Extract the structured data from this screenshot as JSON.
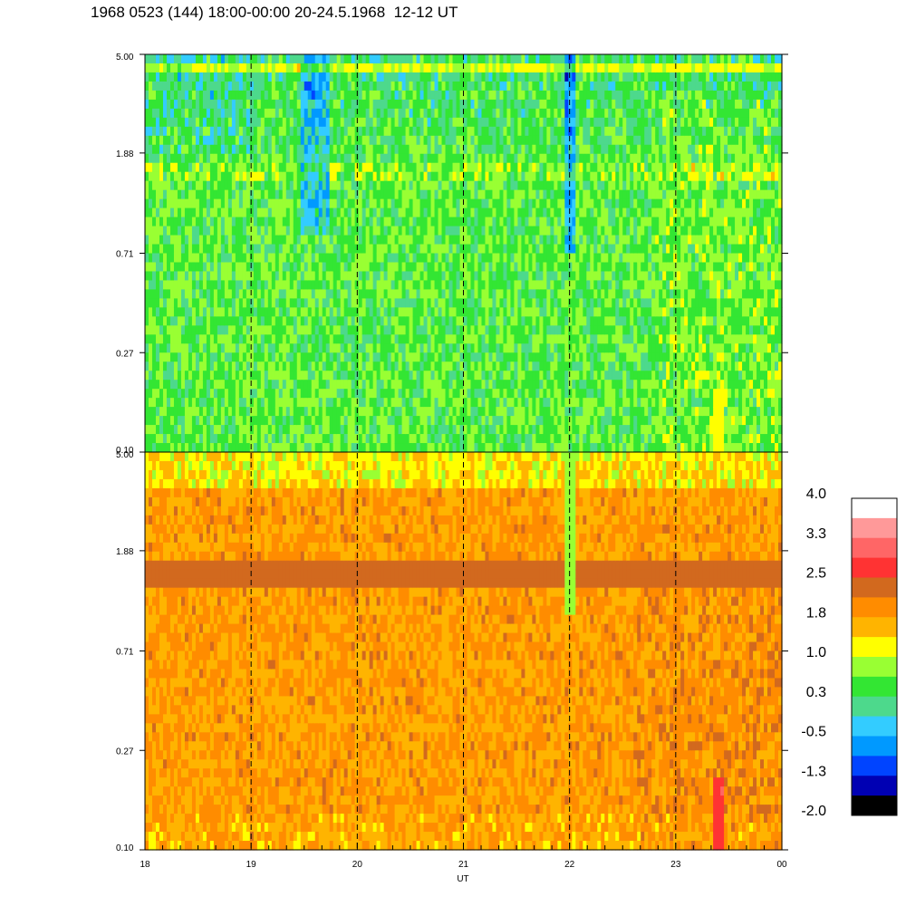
{
  "title": "1968 0523 (144) 18:00-00:00 20-24.5.1968  12-12 UT",
  "chart_data": [
    {
      "type": "heatmap",
      "panel": "upper",
      "x_range": [
        18,
        24
      ],
      "y_ticks": [
        "5.00",
        "1.88",
        "0.71",
        "0.27",
        "0.10"
      ],
      "y_scale": "log",
      "dominant_level_range": [
        0.0,
        1.4
      ],
      "notable_features": [
        "low values (blue) near 1.88–5.00 around 19.6 and 22.0 UT",
        "yellow band just below 5.00",
        "yellow streak near 23.4 UT at 0.10"
      ]
    },
    {
      "type": "heatmap",
      "panel": "lower",
      "x_range": [
        18,
        24
      ],
      "x_tick_labels": [
        "18",
        "19",
        "20",
        "21",
        "22",
        "23",
        "00"
      ],
      "xlabel": "UT",
      "y_ticks": [
        "5.00",
        "1.88",
        "0.71",
        "0.27",
        "0.10"
      ],
      "y_scale": "log",
      "dominant_level_range": [
        1.0,
        2.5
      ],
      "notable_features": [
        "darker orange band near 1.88",
        "green streak near 22.0 UT at 1.88",
        "red streak near 23.4 UT at 0.10"
      ]
    }
  ],
  "dashed_lines_ut": [
    19,
    20,
    21,
    22,
    23
  ],
  "colorbar": {
    "labels": [
      "4.0",
      "3.3",
      "2.5",
      "1.8",
      "1.0",
      "0.3",
      "-0.5",
      "-1.3",
      "-2.0"
    ],
    "colors": [
      "#ffffff",
      "#ff9999",
      "#ff6666",
      "#ff3333",
      "#d2691e",
      "#ff8c00",
      "#ffb400",
      "#ffff00",
      "#99ff33",
      "#33e633",
      "#4dd98c",
      "#33ccff",
      "#0099ff",
      "#0044ff",
      "#0000b3",
      "#000000"
    ]
  }
}
